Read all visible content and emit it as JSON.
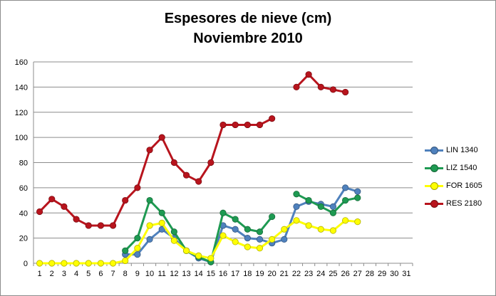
{
  "chart_data": {
    "type": "line",
    "title": "Espesores de nieve (cm)",
    "subtitle": "Noviembre 2010",
    "ylim": [
      0,
      160
    ],
    "yticks": [
      0,
      20,
      40,
      60,
      80,
      100,
      120,
      140,
      160
    ],
    "x": [
      1,
      2,
      3,
      4,
      5,
      6,
      7,
      8,
      9,
      10,
      11,
      12,
      13,
      14,
      15,
      16,
      17,
      18,
      19,
      20,
      21,
      22,
      23,
      24,
      25,
      26,
      27,
      28,
      29,
      30,
      31
    ],
    "grid": true,
    "legend_position": "right",
    "series": [
      {
        "name": "LIN 1340",
        "color": "#4f81bd",
        "values": [
          null,
          null,
          null,
          null,
          null,
          null,
          null,
          7,
          7,
          19,
          27,
          20,
          10,
          4,
          1,
          30,
          27,
          20,
          19,
          16,
          19,
          45,
          49,
          47,
          45,
          60,
          57,
          null,
          null,
          null,
          null
        ]
      },
      {
        "name": "LIZ 1540",
        "color": "#1e9a52",
        "values": [
          null,
          null,
          null,
          null,
          null,
          null,
          null,
          10,
          20,
          50,
          40,
          25,
          10,
          5,
          1,
          40,
          35,
          27,
          25,
          37,
          null,
          55,
          50,
          45,
          40,
          50,
          52,
          null,
          null,
          null,
          null
        ]
      },
      {
        "name": "FOR 1605",
        "color": "#ffff00",
        "values": [
          0,
          0,
          0,
          0,
          0,
          0,
          0,
          2,
          12,
          30,
          32,
          18,
          10,
          6,
          4,
          22,
          17,
          13,
          12,
          19,
          27,
          34,
          30,
          27,
          26,
          34,
          33,
          null,
          null,
          null,
          null
        ]
      },
      {
        "name": "RES 2180",
        "color": "#b8141d",
        "values": [
          41,
          51,
          45,
          35,
          30,
          30,
          30,
          50,
          60,
          90,
          100,
          80,
          70,
          65,
          80,
          110,
          110,
          110,
          110,
          115,
          null,
          140,
          150,
          140,
          138,
          136,
          null,
          null,
          null,
          null,
          null
        ]
      }
    ]
  }
}
